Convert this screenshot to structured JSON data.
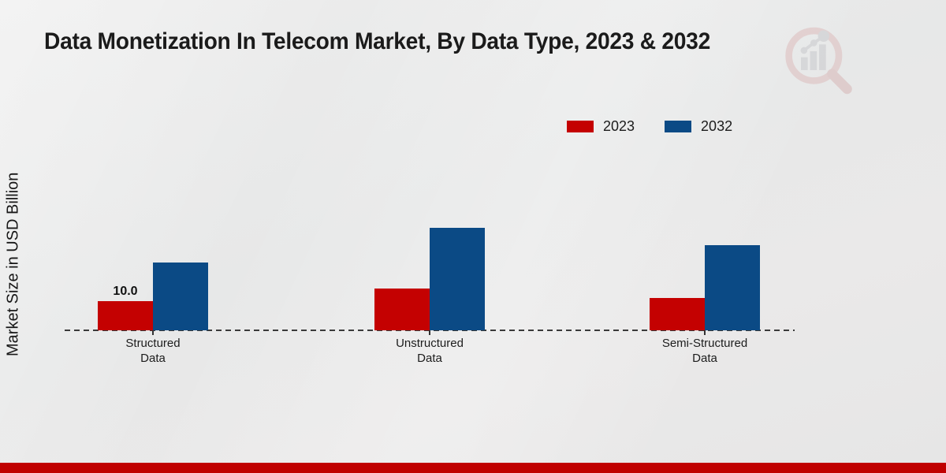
{
  "page": {
    "footer_color": "#c00000",
    "background_color": "#e9e9e9"
  },
  "chart_data": {
    "type": "bar",
    "title": "Data Monetization In Telecom Market, By Data Type, 2023 & 2032",
    "ylabel": "Market Size in USD Billion",
    "xlabel": "",
    "categories": [
      "Structured Data",
      "Unstructured Data",
      "Semi-Structured Data"
    ],
    "series": [
      {
        "name": "2023",
        "color": "#c40101",
        "values": [
          10.0,
          14.3,
          11.1
        ]
      },
      {
        "name": "2032",
        "color": "#0b4a85",
        "values": [
          23.2,
          35.1,
          29.2
        ]
      }
    ],
    "annotations": [
      {
        "category": "Structured Data",
        "series": "2023",
        "text": "10.0"
      }
    ],
    "grid": false,
    "baseline": "dashed zero line",
    "legend_position": "top-right",
    "ylim": [
      0,
      40
    ]
  },
  "watermark": {
    "name": "magnifier-bar-chart-logo",
    "ring_color": "#dcb9b9",
    "bars_color": "#c6c6ca"
  }
}
